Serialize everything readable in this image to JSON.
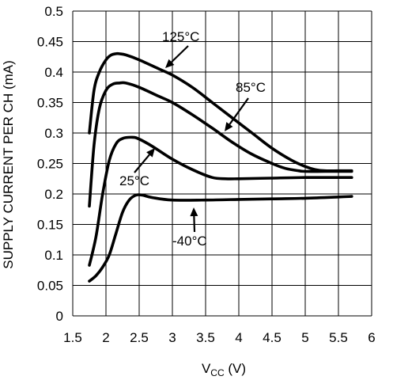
{
  "chart_data": {
    "type": "line",
    "xlabel": "V",
    "xlabel_sub": "CC",
    "xlabel_unit": " (V)",
    "ylabel": "SUPPLY CURRENT PER CH (mA)",
    "xlim": [
      1.5,
      6
    ],
    "ylim": [
      0,
      0.5
    ],
    "x_ticks": [
      "1.5",
      "2",
      "2.5",
      "3",
      "3.5",
      "4",
      "4.5",
      "5",
      "5.5",
      "6"
    ],
    "y_ticks": [
      "0",
      "0.05",
      "0.1",
      "0.15",
      "0.2",
      "0.25",
      "0.3",
      "0.35",
      "0.4",
      "0.45",
      "0.5"
    ],
    "grid": true,
    "series": [
      {
        "name": "125°C",
        "x": [
          1.75,
          1.82,
          1.9,
          2.0,
          2.08,
          2.15,
          2.2,
          2.3,
          2.5,
          2.8,
          3.0,
          3.3,
          3.6,
          3.9,
          4.2,
          4.5,
          4.8,
          5.0,
          5.15,
          5.3,
          5.5,
          5.7
        ],
        "y": [
          0.3,
          0.37,
          0.4,
          0.42,
          0.428,
          0.43,
          0.43,
          0.428,
          0.42,
          0.405,
          0.395,
          0.375,
          0.35,
          0.325,
          0.3,
          0.275,
          0.255,
          0.245,
          0.24,
          0.238,
          0.238,
          0.238
        ]
      },
      {
        "name": "85°C",
        "x": [
          1.75,
          1.82,
          1.9,
          2.0,
          2.1,
          2.2,
          2.3,
          2.5,
          2.8,
          3.0,
          3.3,
          3.6,
          3.9,
          4.2,
          4.5,
          4.7,
          4.9,
          5.0,
          5.3,
          5.7
        ],
        "y": [
          0.18,
          0.28,
          0.34,
          0.37,
          0.38,
          0.382,
          0.382,
          0.375,
          0.36,
          0.35,
          0.33,
          0.308,
          0.285,
          0.265,
          0.25,
          0.242,
          0.238,
          0.237,
          0.237,
          0.237
        ]
      },
      {
        "name": "25°C",
        "x": [
          1.75,
          1.85,
          1.95,
          2.05,
          2.15,
          2.25,
          2.4,
          2.5,
          2.7,
          3.0,
          3.3,
          3.6,
          3.8,
          4.0,
          4.5,
          5.0,
          5.5,
          5.7
        ],
        "y": [
          0.083,
          0.13,
          0.2,
          0.255,
          0.282,
          0.291,
          0.293,
          0.29,
          0.278,
          0.257,
          0.24,
          0.227,
          0.225,
          0.225,
          0.226,
          0.227,
          0.227,
          0.227
        ]
      },
      {
        "name": "-40°C",
        "x": [
          1.75,
          1.85,
          1.95,
          2.05,
          2.15,
          2.25,
          2.35,
          2.45,
          2.55,
          2.7,
          3.0,
          3.5,
          4.0,
          4.5,
          5.0,
          5.5,
          5.7
        ],
        "y": [
          0.057,
          0.066,
          0.08,
          0.1,
          0.135,
          0.17,
          0.19,
          0.198,
          0.198,
          0.194,
          0.19,
          0.19,
          0.191,
          0.192,
          0.193,
          0.195,
          0.196
        ]
      }
    ],
    "annotations": [
      {
        "text": "125°C",
        "series": "125°C"
      },
      {
        "text": "85°C",
        "series": "85°C"
      },
      {
        "text": "25°C",
        "series": "25°C"
      },
      {
        "text": "-40°C",
        "series": "-40°C"
      }
    ]
  }
}
